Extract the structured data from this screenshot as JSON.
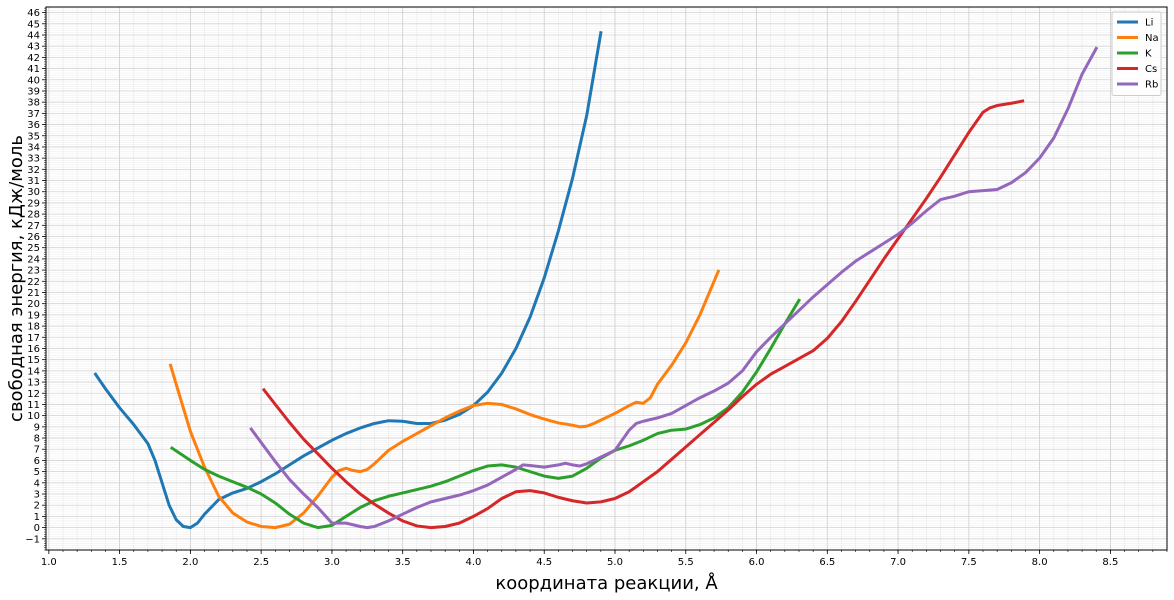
{
  "chart_data": {
    "type": "line",
    "title": "",
    "xlabel": "координата реакции, Å",
    "ylabel": "свободная энергия, кДж/моль",
    "xlim": [
      0.98,
      8.9
    ],
    "ylim": [
      -2.0,
      46.5
    ],
    "x_ticks": [
      1.0,
      1.5,
      2.0,
      2.5,
      3.0,
      3.5,
      4.0,
      4.5,
      5.0,
      5.5,
      6.0,
      6.5,
      7.0,
      7.5,
      8.0,
      8.5
    ],
    "x_tick_labels": [
      "1.0",
      "1.5",
      "2.0",
      "2.5",
      "3.0",
      "3.5",
      "4.0",
      "4.5",
      "5.0",
      "5.5",
      "6.0",
      "6.5",
      "7.0",
      "7.5",
      "8.0",
      "8.5"
    ],
    "y_ticks": [
      -1,
      0,
      1,
      2,
      3,
      4,
      5,
      6,
      7,
      8,
      9,
      10,
      11,
      12,
      13,
      14,
      15,
      16,
      17,
      18,
      19,
      20,
      21,
      22,
      23,
      24,
      25,
      26,
      27,
      28,
      29,
      30,
      31,
      32,
      33,
      34,
      35,
      36,
      37,
      38,
      39,
      40,
      41,
      42,
      43,
      44,
      45,
      46
    ],
    "y_tick_labels": [
      "−1",
      "0",
      "1",
      "2",
      "3",
      "4",
      "5",
      "6",
      "7",
      "8",
      "9",
      "10",
      "11",
      "12",
      "13",
      "14",
      "15",
      "16",
      "17",
      "18",
      "19",
      "20",
      "21",
      "22",
      "23",
      "24",
      "25",
      "26",
      "27",
      "28",
      "29",
      "30",
      "31",
      "32",
      "33",
      "34",
      "35",
      "36",
      "37",
      "38",
      "39",
      "40",
      "41",
      "42",
      "43",
      "44",
      "45",
      "46"
    ],
    "grid": true,
    "minor_grid": true,
    "legend_position": "top-right",
    "series": [
      {
        "name": "Li",
        "color": "#1f77b4",
        "points": [
          [
            1.33,
            13.7
          ],
          [
            1.4,
            12.4
          ],
          [
            1.5,
            10.7
          ],
          [
            1.6,
            9.2
          ],
          [
            1.7,
            7.5
          ],
          [
            1.75,
            6.0
          ],
          [
            1.8,
            4.0
          ],
          [
            1.85,
            2.0
          ],
          [
            1.9,
            0.7
          ],
          [
            1.95,
            0.1
          ],
          [
            2.0,
            0.0
          ],
          [
            2.05,
            0.4
          ],
          [
            2.1,
            1.2
          ],
          [
            2.2,
            2.5
          ],
          [
            2.3,
            3.1
          ],
          [
            2.4,
            3.5
          ],
          [
            2.5,
            4.1
          ],
          [
            2.6,
            4.8
          ],
          [
            2.7,
            5.6
          ],
          [
            2.8,
            6.4
          ],
          [
            2.9,
            7.1
          ],
          [
            3.0,
            7.8
          ],
          [
            3.1,
            8.4
          ],
          [
            3.2,
            8.9
          ],
          [
            3.3,
            9.3
          ],
          [
            3.4,
            9.55
          ],
          [
            3.5,
            9.5
          ],
          [
            3.6,
            9.3
          ],
          [
            3.7,
            9.3
          ],
          [
            3.8,
            9.6
          ],
          [
            3.9,
            10.1
          ],
          [
            4.0,
            10.9
          ],
          [
            4.1,
            12.1
          ],
          [
            4.2,
            13.8
          ],
          [
            4.3,
            16.0
          ],
          [
            4.4,
            18.8
          ],
          [
            4.5,
            22.3
          ],
          [
            4.6,
            26.5
          ],
          [
            4.7,
            31.2
          ],
          [
            4.8,
            36.8
          ],
          [
            4.9,
            44.2
          ]
        ]
      },
      {
        "name": "Na",
        "color": "#ff7f0e",
        "points": [
          [
            1.86,
            14.5
          ],
          [
            1.9,
            12.8
          ],
          [
            2.0,
            8.6
          ],
          [
            2.1,
            5.4
          ],
          [
            2.2,
            2.8
          ],
          [
            2.3,
            1.3
          ],
          [
            2.4,
            0.5
          ],
          [
            2.5,
            0.1
          ],
          [
            2.6,
            0.0
          ],
          [
            2.7,
            0.3
          ],
          [
            2.8,
            1.3
          ],
          [
            2.9,
            2.8
          ],
          [
            3.0,
            4.5
          ],
          [
            3.05,
            5.1
          ],
          [
            3.1,
            5.3
          ],
          [
            3.15,
            5.1
          ],
          [
            3.2,
            5.0
          ],
          [
            3.25,
            5.2
          ],
          [
            3.3,
            5.7
          ],
          [
            3.4,
            6.9
          ],
          [
            3.5,
            7.7
          ],
          [
            3.6,
            8.4
          ],
          [
            3.7,
            9.1
          ],
          [
            3.8,
            9.8
          ],
          [
            3.9,
            10.4
          ],
          [
            4.0,
            10.9
          ],
          [
            4.1,
            11.1
          ],
          [
            4.2,
            11.0
          ],
          [
            4.3,
            10.6
          ],
          [
            4.4,
            10.1
          ],
          [
            4.5,
            9.7
          ],
          [
            4.6,
            9.35
          ],
          [
            4.7,
            9.15
          ],
          [
            4.75,
            9.0
          ],
          [
            4.8,
            9.05
          ],
          [
            4.85,
            9.3
          ],
          [
            4.9,
            9.6
          ],
          [
            5.0,
            10.2
          ],
          [
            5.1,
            10.9
          ],
          [
            5.15,
            11.2
          ],
          [
            5.2,
            11.1
          ],
          [
            5.25,
            11.6
          ],
          [
            5.3,
            12.8
          ],
          [
            5.4,
            14.5
          ],
          [
            5.5,
            16.5
          ],
          [
            5.6,
            19.0
          ],
          [
            5.7,
            22.0
          ],
          [
            5.73,
            22.9
          ]
        ]
      },
      {
        "name": "K",
        "color": "#2ca02c",
        "points": [
          [
            1.87,
            7.1
          ],
          [
            2.0,
            6.0
          ],
          [
            2.1,
            5.2
          ],
          [
            2.2,
            4.6
          ],
          [
            2.3,
            4.1
          ],
          [
            2.4,
            3.6
          ],
          [
            2.5,
            3.0
          ],
          [
            2.6,
            2.2
          ],
          [
            2.7,
            1.2
          ],
          [
            2.8,
            0.4
          ],
          [
            2.9,
            0.0
          ],
          [
            3.0,
            0.2
          ],
          [
            3.1,
            1.0
          ],
          [
            3.2,
            1.8
          ],
          [
            3.3,
            2.4
          ],
          [
            3.4,
            2.8
          ],
          [
            3.5,
            3.1
          ],
          [
            3.6,
            3.4
          ],
          [
            3.7,
            3.7
          ],
          [
            3.8,
            4.1
          ],
          [
            3.9,
            4.6
          ],
          [
            4.0,
            5.1
          ],
          [
            4.1,
            5.5
          ],
          [
            4.2,
            5.6
          ],
          [
            4.3,
            5.4
          ],
          [
            4.4,
            5.0
          ],
          [
            4.5,
            4.6
          ],
          [
            4.6,
            4.4
          ],
          [
            4.7,
            4.6
          ],
          [
            4.8,
            5.3
          ],
          [
            4.9,
            6.2
          ],
          [
            5.0,
            6.9
          ],
          [
            5.1,
            7.3
          ],
          [
            5.2,
            7.8
          ],
          [
            5.3,
            8.4
          ],
          [
            5.4,
            8.7
          ],
          [
            5.5,
            8.8
          ],
          [
            5.6,
            9.2
          ],
          [
            5.7,
            9.8
          ],
          [
            5.8,
            10.7
          ],
          [
            5.9,
            12.1
          ],
          [
            6.0,
            13.9
          ],
          [
            6.1,
            16.0
          ],
          [
            6.2,
            18.2
          ],
          [
            6.3,
            20.3
          ]
        ]
      },
      {
        "name": "Cs",
        "color": "#d62728",
        "points": [
          [
            2.52,
            12.3
          ],
          [
            2.6,
            11.0
          ],
          [
            2.7,
            9.4
          ],
          [
            2.8,
            7.9
          ],
          [
            2.9,
            6.6
          ],
          [
            3.0,
            5.3
          ],
          [
            3.1,
            4.1
          ],
          [
            3.2,
            3.0
          ],
          [
            3.3,
            2.1
          ],
          [
            3.4,
            1.3
          ],
          [
            3.5,
            0.6
          ],
          [
            3.6,
            0.15
          ],
          [
            3.7,
            0.0
          ],
          [
            3.8,
            0.1
          ],
          [
            3.9,
            0.4
          ],
          [
            4.0,
            1.0
          ],
          [
            4.1,
            1.7
          ],
          [
            4.2,
            2.6
          ],
          [
            4.3,
            3.2
          ],
          [
            4.4,
            3.3
          ],
          [
            4.5,
            3.1
          ],
          [
            4.6,
            2.7
          ],
          [
            4.7,
            2.4
          ],
          [
            4.8,
            2.2
          ],
          [
            4.9,
            2.3
          ],
          [
            5.0,
            2.6
          ],
          [
            5.1,
            3.2
          ],
          [
            5.2,
            4.1
          ],
          [
            5.3,
            5.0
          ],
          [
            5.4,
            6.1
          ],
          [
            5.5,
            7.2
          ],
          [
            5.6,
            8.3
          ],
          [
            5.7,
            9.4
          ],
          [
            5.8,
            10.5
          ],
          [
            5.9,
            11.7
          ],
          [
            6.0,
            12.8
          ],
          [
            6.1,
            13.7
          ],
          [
            6.2,
            14.4
          ],
          [
            6.3,
            15.1
          ],
          [
            6.4,
            15.8
          ],
          [
            6.5,
            16.9
          ],
          [
            6.6,
            18.4
          ],
          [
            6.7,
            20.2
          ],
          [
            6.8,
            22.1
          ],
          [
            6.9,
            24.0
          ],
          [
            7.0,
            25.8
          ],
          [
            7.1,
            27.6
          ],
          [
            7.2,
            29.4
          ],
          [
            7.3,
            31.3
          ],
          [
            7.4,
            33.3
          ],
          [
            7.5,
            35.3
          ],
          [
            7.6,
            37.1
          ],
          [
            7.65,
            37.5
          ],
          [
            7.7,
            37.7
          ],
          [
            7.8,
            37.9
          ],
          [
            7.88,
            38.1
          ]
        ]
      },
      {
        "name": "Rb",
        "color": "#9467bd",
        "points": [
          [
            2.43,
            8.8
          ],
          [
            2.5,
            7.6
          ],
          [
            2.6,
            5.9
          ],
          [
            2.7,
            4.3
          ],
          [
            2.8,
            3.0
          ],
          [
            2.9,
            1.8
          ],
          [
            2.95,
            1.1
          ],
          [
            3.0,
            0.4
          ],
          [
            3.05,
            0.4
          ],
          [
            3.1,
            0.4
          ],
          [
            3.2,
            0.1
          ],
          [
            3.25,
            0.0
          ],
          [
            3.3,
            0.1
          ],
          [
            3.4,
            0.6
          ],
          [
            3.5,
            1.2
          ],
          [
            3.6,
            1.8
          ],
          [
            3.7,
            2.3
          ],
          [
            3.8,
            2.6
          ],
          [
            3.9,
            2.9
          ],
          [
            4.0,
            3.3
          ],
          [
            4.1,
            3.8
          ],
          [
            4.2,
            4.5
          ],
          [
            4.3,
            5.2
          ],
          [
            4.35,
            5.6
          ],
          [
            4.4,
            5.55
          ],
          [
            4.5,
            5.4
          ],
          [
            4.6,
            5.6
          ],
          [
            4.65,
            5.75
          ],
          [
            4.7,
            5.6
          ],
          [
            4.75,
            5.5
          ],
          [
            4.8,
            5.7
          ],
          [
            4.85,
            6.0
          ],
          [
            4.9,
            6.3
          ],
          [
            5.0,
            6.9
          ],
          [
            5.05,
            7.8
          ],
          [
            5.1,
            8.7
          ],
          [
            5.15,
            9.3
          ],
          [
            5.2,
            9.5
          ],
          [
            5.3,
            9.8
          ],
          [
            5.4,
            10.2
          ],
          [
            5.5,
            10.9
          ],
          [
            5.6,
            11.6
          ],
          [
            5.7,
            12.2
          ],
          [
            5.8,
            12.9
          ],
          [
            5.9,
            14.0
          ],
          [
            6.0,
            15.7
          ],
          [
            6.1,
            17.0
          ],
          [
            6.2,
            18.2
          ],
          [
            6.3,
            19.4
          ],
          [
            6.4,
            20.6
          ],
          [
            6.5,
            21.7
          ],
          [
            6.6,
            22.8
          ],
          [
            6.7,
            23.8
          ],
          [
            6.8,
            24.6
          ],
          [
            6.9,
            25.4
          ],
          [
            7.0,
            26.2
          ],
          [
            7.1,
            27.2
          ],
          [
            7.2,
            28.3
          ],
          [
            7.3,
            29.3
          ],
          [
            7.4,
            29.6
          ],
          [
            7.5,
            30.0
          ],
          [
            7.6,
            30.1
          ],
          [
            7.7,
            30.2
          ],
          [
            7.8,
            30.8
          ],
          [
            7.9,
            31.7
          ],
          [
            8.0,
            33.0
          ],
          [
            8.1,
            34.8
          ],
          [
            8.2,
            37.4
          ],
          [
            8.3,
            40.5
          ],
          [
            8.4,
            42.8
          ]
        ]
      }
    ]
  }
}
